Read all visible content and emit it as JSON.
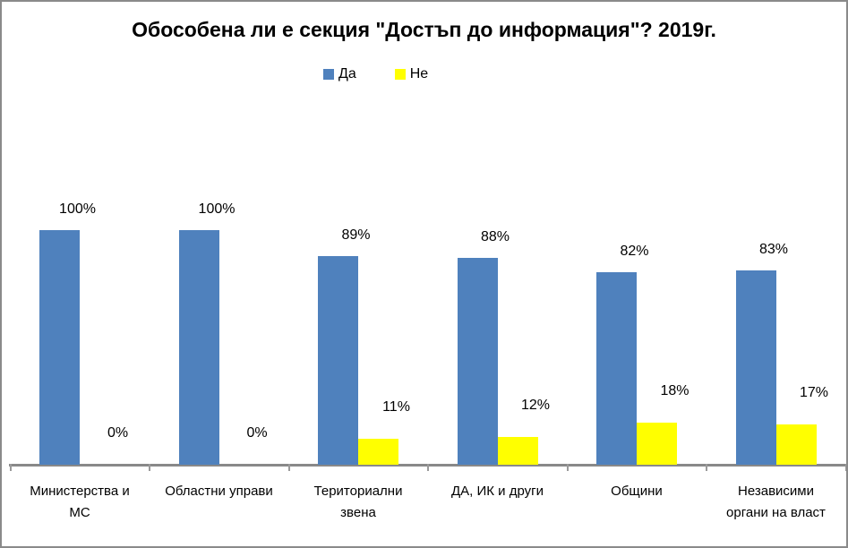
{
  "chart_data": {
    "type": "bar",
    "title": "Обособена ли е секция \"Достъп до информация\"? 2019г.",
    "categories": [
      "Министерства и МС",
      "Областни управи",
      "Териториални звена",
      "ДА, ИК и други",
      "Общини",
      "Независими органи на власт"
    ],
    "category_label_lines": [
      [
        "Министерства и",
        "МС"
      ],
      [
        "Областни управи"
      ],
      [
        "Териториални",
        "звена"
      ],
      [
        "ДА, ИК и други"
      ],
      [
        "Общини"
      ],
      [
        "Независими",
        "органи на власт"
      ]
    ],
    "series": [
      {
        "name": "Да",
        "color": "#4F81BD",
        "values": [
          100,
          100,
          89,
          88,
          82,
          83
        ],
        "data_labels": [
          "100%",
          "100%",
          "89%",
          "88%",
          "82%",
          "83%"
        ]
      },
      {
        "name": "Не",
        "color": "#FFFF00",
        "values": [
          0,
          0,
          11,
          12,
          18,
          17
        ],
        "data_labels": [
          "0%",
          "0%",
          "11%",
          "12%",
          "18%",
          "17%"
        ]
      }
    ],
    "ylim": [
      0,
      100
    ],
    "unit": "%",
    "grid": false,
    "y_axis_visible": false,
    "legend_position": "top-center",
    "background_color": "#FFFFFF",
    "border_color": "#8A8A8A",
    "axis_line_color": "#898989",
    "text_color": "#000000"
  }
}
